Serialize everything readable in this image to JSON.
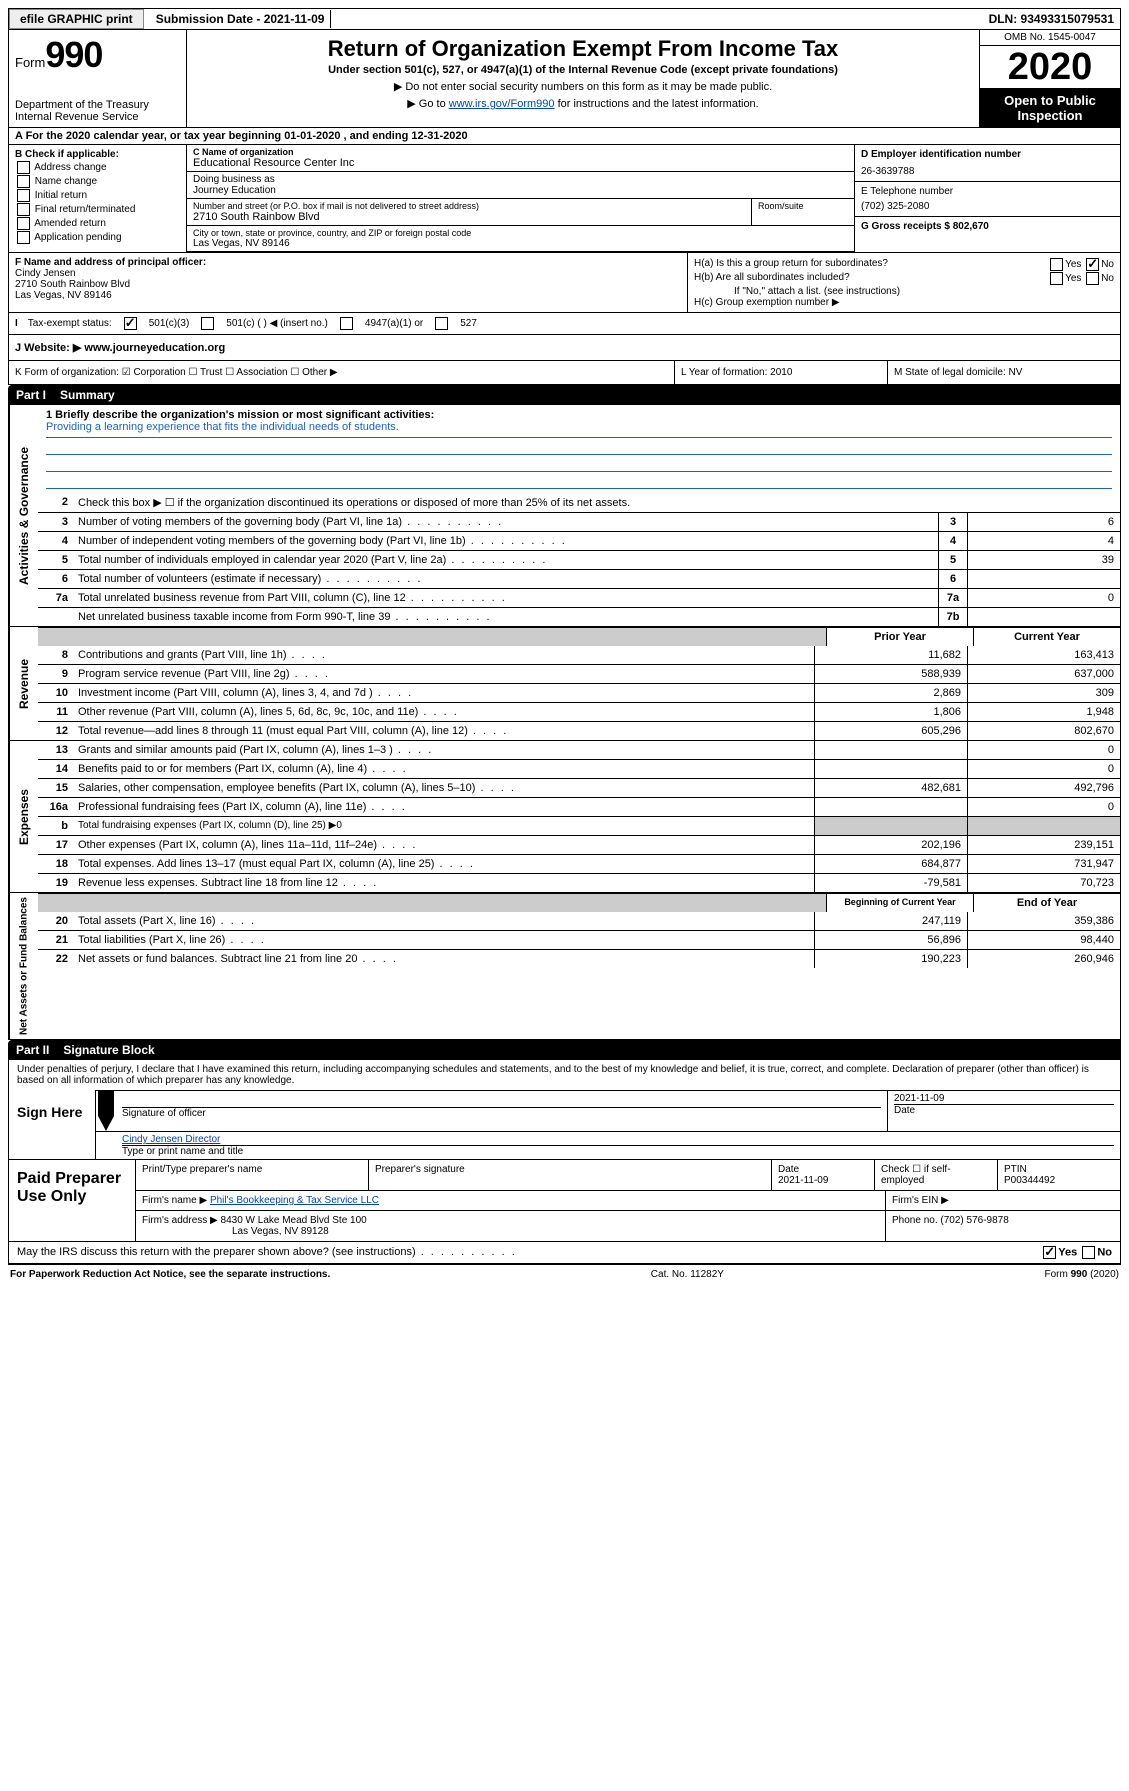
{
  "topbar": {
    "efile": "efile GRAPHIC print",
    "submission": "Submission Date - 2021-11-09",
    "dln": "DLN: 93493315079531"
  },
  "header": {
    "form_label": "Form",
    "form_num": "990",
    "dept": "Department of the Treasury\nInternal Revenue Service",
    "title": "Return of Organization Exempt From Income Tax",
    "subtitle": "Under section 501(c), 527, or 4947(a)(1) of the Internal Revenue Code (except private foundations)",
    "note1": "▶ Do not enter social security numbers on this form as it may be made public.",
    "note2_pre": "▶ Go to ",
    "note2_link": "www.irs.gov/Form990",
    "note2_post": " for instructions and the latest information.",
    "omb": "OMB No. 1545-0047",
    "year": "2020",
    "open": "Open to Public Inspection"
  },
  "rowA": "A For the 2020 calendar year, or tax year beginning 01-01-2020   , and ending 12-31-2020",
  "boxB": {
    "header": "B Check if applicable:",
    "items": [
      "Address change",
      "Name change",
      "Initial return",
      "Final return/terminated",
      "Amended return",
      "Application pending"
    ]
  },
  "boxC": {
    "name_label": "C Name of organization",
    "name": "Educational Resource Center Inc",
    "dba_label": "Doing business as",
    "dba": "Journey Education",
    "street_label": "Number and street (or P.O. box if mail is not delivered to street address)",
    "street": "2710 South Rainbow Blvd",
    "suite_label": "Room/suite",
    "city_label": "City or town, state or province, country, and ZIP or foreign postal code",
    "city": "Las Vegas, NV  89146"
  },
  "boxD": {
    "label": "D Employer identification number",
    "value": "26-3639788"
  },
  "boxE": {
    "label": "E Telephone number",
    "value": "(702) 325-2080"
  },
  "boxG": "G Gross receipts $ 802,670",
  "boxF": {
    "label": "F  Name and address of principal officer:",
    "name": "Cindy Jensen",
    "addr1": "2710 South Rainbow Blvd",
    "addr2": "Las Vegas, NV  89146"
  },
  "boxH": {
    "a": "H(a)  Is this a group return for subordinates?",
    "b": "H(b)  Are all subordinates included?",
    "b_note": "If \"No,\" attach a list. (see instructions)",
    "c": "H(c)  Group exemption number ▶"
  },
  "rowI": {
    "label": "Tax-exempt status:",
    "o1": "501(c)(3)",
    "o2": "501(c) (   ) ◀ (insert no.)",
    "o3": "4947(a)(1) or",
    "o4": "527"
  },
  "rowJ": {
    "label": "J   Website: ▶  ",
    "value": "www.journeyeducation.org"
  },
  "boxK": "K Form of organization:   ☑ Corporation  ☐ Trust  ☐ Association  ☐ Other ▶",
  "boxL": "L Year of formation: 2010",
  "boxM": "M State of legal domicile: NV",
  "part1": {
    "num": "Part I",
    "title": "Summary"
  },
  "mission": {
    "q": "1  Briefly describe the organization's mission or most significant activities:",
    "text": "Providing a learning experience that fits the individual needs of students."
  },
  "lines_governance": [
    {
      "n": "2",
      "t": "Check this box ▶ ☐  if the organization discontinued its operations or disposed of more than 25% of its net assets."
    },
    {
      "n": "3",
      "t": "Number of voting members of the governing body (Part VI, line 1a)",
      "box": "3",
      "v": "6"
    },
    {
      "n": "4",
      "t": "Number of independent voting members of the governing body (Part VI, line 1b)",
      "box": "4",
      "v": "4"
    },
    {
      "n": "5",
      "t": "Total number of individuals employed in calendar year 2020 (Part V, line 2a)",
      "box": "5",
      "v": "39"
    },
    {
      "n": "6",
      "t": "Total number of volunteers (estimate if necessary)",
      "box": "6",
      "v": ""
    },
    {
      "n": "7a",
      "t": "Total unrelated business revenue from Part VIII, column (C), line 12",
      "box": "7a",
      "v": "0"
    },
    {
      "n": "",
      "t": "Net unrelated business taxable income from Form 990-T, line 39",
      "box": "7b",
      "v": ""
    }
  ],
  "dual_headers": {
    "revenue": {
      "c1": "Prior Year",
      "c2": "Current Year"
    },
    "netassets": {
      "c1": "Beginning of Current Year",
      "c2": "End of Year"
    }
  },
  "lines_revenue": [
    {
      "n": "8",
      "t": "Contributions and grants (Part VIII, line 1h)",
      "p": "11,682",
      "c": "163,413"
    },
    {
      "n": "9",
      "t": "Program service revenue (Part VIII, line 2g)",
      "p": "588,939",
      "c": "637,000"
    },
    {
      "n": "10",
      "t": "Investment income (Part VIII, column (A), lines 3, 4, and 7d )",
      "p": "2,869",
      "c": "309"
    },
    {
      "n": "11",
      "t": "Other revenue (Part VIII, column (A), lines 5, 6d, 8c, 9c, 10c, and 11e)",
      "p": "1,806",
      "c": "1,948"
    },
    {
      "n": "12",
      "t": "Total revenue—add lines 8 through 11 (must equal Part VIII, column (A), line 12)",
      "p": "605,296",
      "c": "802,670"
    }
  ],
  "lines_expenses": [
    {
      "n": "13",
      "t": "Grants and similar amounts paid (Part IX, column (A), lines 1–3 )",
      "p": "",
      "c": "0"
    },
    {
      "n": "14",
      "t": "Benefits paid to or for members (Part IX, column (A), line 4)",
      "p": "",
      "c": "0"
    },
    {
      "n": "15",
      "t": "Salaries, other compensation, employee benefits (Part IX, column (A), lines 5–10)",
      "p": "482,681",
      "c": "492,796"
    },
    {
      "n": "16a",
      "t": "Professional fundraising fees (Part IX, column (A), line 11e)",
      "p": "",
      "c": "0"
    },
    {
      "n": "b",
      "t": "Total fundraising expenses (Part IX, column (D), line 25) ▶0",
      "p": "—",
      "c": "—"
    },
    {
      "n": "17",
      "t": "Other expenses (Part IX, column (A), lines 11a–11d, 11f–24e)",
      "p": "202,196",
      "c": "239,151"
    },
    {
      "n": "18",
      "t": "Total expenses. Add lines 13–17 (must equal Part IX, column (A), line 25)",
      "p": "684,877",
      "c": "731,947"
    },
    {
      "n": "19",
      "t": "Revenue less expenses. Subtract line 18 from line 12",
      "p": "-79,581",
      "c": "70,723"
    }
  ],
  "lines_netassets": [
    {
      "n": "20",
      "t": "Total assets (Part X, line 16)",
      "p": "247,119",
      "c": "359,386"
    },
    {
      "n": "21",
      "t": "Total liabilities (Part X, line 26)",
      "p": "56,896",
      "c": "98,440"
    },
    {
      "n": "22",
      "t": "Net assets or fund balances. Subtract line 21 from line 20",
      "p": "190,223",
      "c": "260,946"
    }
  ],
  "side_labels": {
    "gov": "Activities & Governance",
    "rev": "Revenue",
    "exp": "Expenses",
    "net": "Net Assets or Fund Balances"
  },
  "part2": {
    "num": "Part II",
    "title": "Signature Block"
  },
  "sig": {
    "declaration": "Under penalties of perjury, I declare that I have examined this return, including accompanying schedules and statements, and to the best of my knowledge and belief, it is true, correct, and complete. Declaration of preparer (other than officer) is based on all information of which preparer has any knowledge.",
    "sign_here": "Sign Here",
    "sig_officer": "Signature of officer",
    "sig_date": "2021-11-09",
    "date_label": "Date",
    "typed_name": "Cindy Jensen  Director",
    "typed_label": "Type or print name and title"
  },
  "paid": {
    "heading": "Paid Preparer Use Only",
    "h_name": "Print/Type preparer's name",
    "h_sig": "Preparer's signature",
    "h_date": "Date",
    "date": "2021-11-09",
    "h_check": "Check ☐ if self-employed",
    "h_ptin": "PTIN",
    "ptin": "P00344492",
    "firm_name_l": "Firm's name      ▶",
    "firm_name": "Phil's Bookkeeping & Tax Service LLC",
    "firm_ein_l": "Firm's EIN ▶",
    "firm_addr_l": "Firm's address ▶",
    "firm_addr1": "8430 W Lake Mead Blvd Ste 100",
    "firm_addr2": "Las Vegas, NV  89128",
    "phone_l": "Phone no.",
    "phone": "(702) 576-9878"
  },
  "discuss": "May the IRS discuss this return with the preparer shown above? (see instructions)",
  "footer": {
    "left": "For Paperwork Reduction Act Notice, see the separate instructions.",
    "mid": "Cat. No. 11282Y",
    "right": "Form 990 (2020)"
  },
  "yesno": {
    "yes": "Yes",
    "no": "No"
  }
}
